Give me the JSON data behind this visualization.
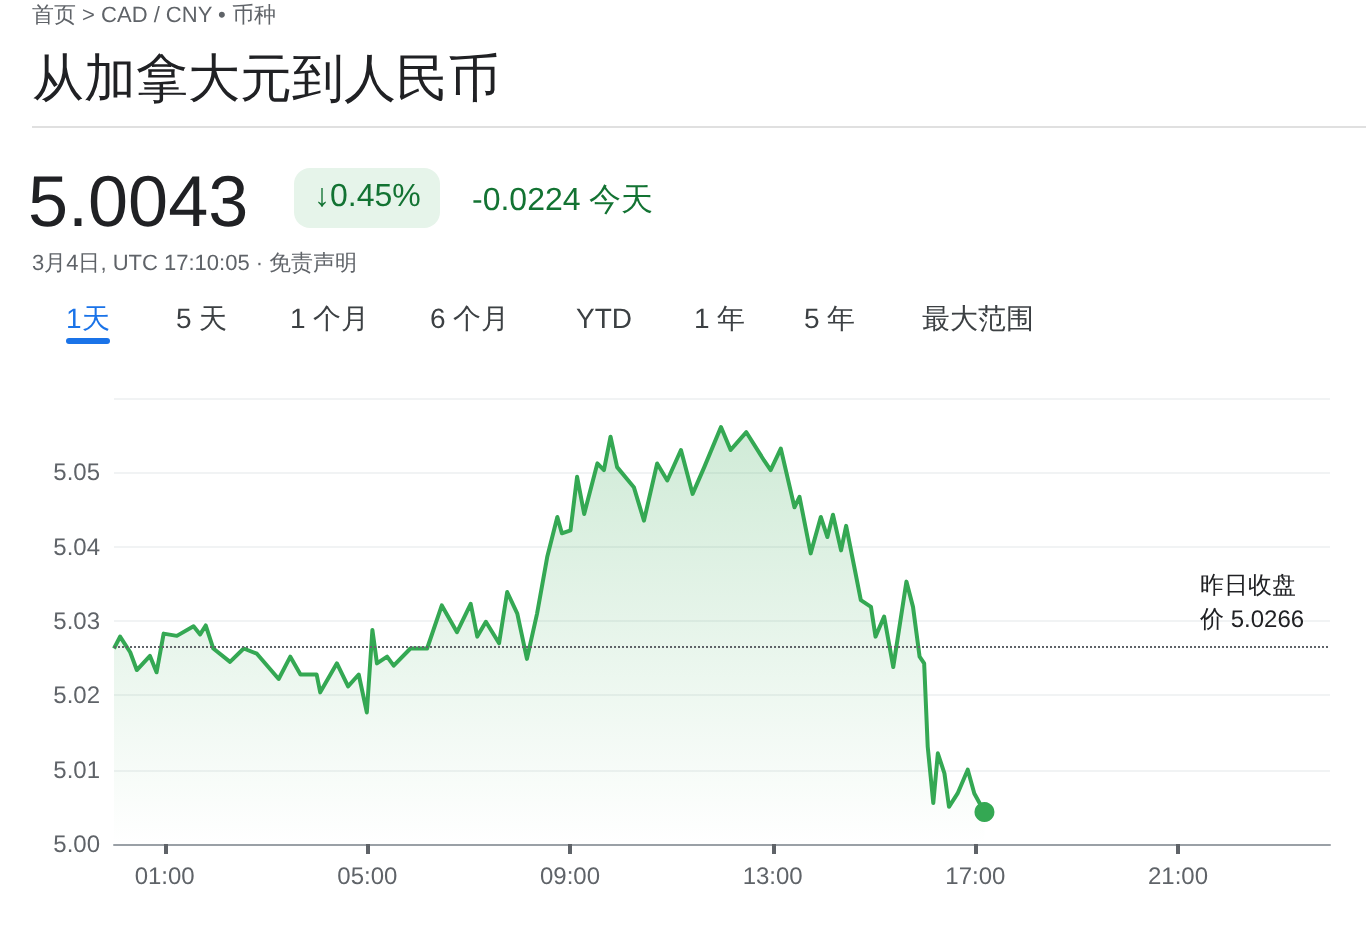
{
  "chart_data": {
    "type": "area",
    "title": "从加拿大元到人民币",
    "annotations": [
      "首页 > CAD / CNY • 币种",
      "5.0043",
      "↓0.45%",
      "-0.0224 今天",
      "3月4日, UTC 17:10:05 · 免责声明",
      "1天",
      "5 天",
      "1 个月",
      "6 个月",
      "YTD",
      "1 年",
      "5 年",
      "最大范围"
    ],
    "x": [
      0,
      0.12,
      0.32,
      0.45,
      0.71,
      0.84,
      0.98,
      1.24,
      1.57,
      1.7,
      1.81,
      1.96,
      2.29,
      2.56,
      2.82,
      3.25,
      3.48,
      3.68,
      4.0,
      4.07,
      4.4,
      4.62,
      4.83,
      4.99,
      5.1,
      5.19,
      5.39,
      5.52,
      5.85,
      6.18,
      6.47,
      6.77,
      7.04,
      7.17,
      7.34,
      7.6,
      7.76,
      7.96,
      8.15,
      8.35,
      8.55,
      8.75,
      8.84,
      9.01,
      9.14,
      9.28,
      9.54,
      9.67,
      9.8,
      9.93,
      10.26,
      10.46,
      10.72,
      10.92,
      11.19,
      11.42,
      11.65,
      11.98,
      12.17,
      12.48,
      12.83,
      12.96,
      13.16,
      13.43,
      13.53,
      13.75,
      13.95,
      14.08,
      14.19,
      14.35,
      14.45,
      14.61,
      14.74,
      14.94,
      15.03,
      15.2,
      15.38,
      15.64,
      15.77,
      15.9,
      15.99,
      16.06,
      16.17,
      16.26,
      16.39,
      16.48,
      16.65,
      16.85,
      16.98,
      17.18
    ],
    "series": [
      {
        "color": "#34a853",
        "values": [
          5.0263,
          5.0279,
          5.0258,
          5.0234,
          5.0253,
          5.0231,
          5.0283,
          5.028,
          5.0293,
          5.0282,
          5.0294,
          5.0263,
          5.0245,
          5.0263,
          5.0256,
          5.0222,
          5.0252,
          5.0228,
          5.0228,
          5.0204,
          5.0243,
          5.0212,
          5.0228,
          5.0177,
          5.0288,
          5.0243,
          5.0252,
          5.024,
          5.0263,
          5.0263,
          5.0321,
          5.0285,
          5.0323,
          5.0279,
          5.0299,
          5.027,
          5.0339,
          5.031,
          5.0249,
          5.031,
          5.0386,
          5.044,
          5.0418,
          5.0422,
          5.0494,
          5.0444,
          5.0512,
          5.0503,
          5.0548,
          5.0507,
          5.048,
          5.0435,
          5.0512,
          5.0489,
          5.053,
          5.0471,
          5.0507,
          5.0561,
          5.053,
          5.0554,
          5.0516,
          5.0503,
          5.0532,
          5.0453,
          5.0467,
          5.0391,
          5.044,
          5.0413,
          5.0443,
          5.0395,
          5.0428,
          5.0373,
          5.0328,
          5.0319,
          5.0279,
          5.0306,
          5.0238,
          5.0353,
          5.0319,
          5.0252,
          5.0243,
          5.0131,
          5.0055,
          5.0122,
          5.0095,
          5.005,
          5.0068,
          5.01,
          5.0068,
          5.0043
        ]
      }
    ],
    "xlim": [
      0,
      24
    ],
    "xticks": [
      {
        "value": 1,
        "label": "01:00"
      },
      {
        "value": 5,
        "label": "05:00"
      },
      {
        "value": 9,
        "label": "09:00"
      },
      {
        "value": 13,
        "label": "13:00"
      },
      {
        "value": 17,
        "label": "17:00"
      },
      {
        "value": 21,
        "label": "21:00"
      }
    ],
    "ylim": [
      5.0,
      5.06
    ],
    "yticks": [
      {
        "value": 5.0,
        "label": "5.00"
      },
      {
        "value": 5.01,
        "label": "5.01"
      },
      {
        "value": 5.02,
        "label": "5.02"
      },
      {
        "value": 5.03,
        "label": "5.03"
      },
      {
        "value": 5.04,
        "label": "5.04"
      },
      {
        "value": 5.05,
        "label": "5.05"
      }
    ],
    "ref_lines": [
      {
        "axis": "y",
        "value": 5.0266,
        "label": "昨日收盘价 5.0266",
        "color": "#5f6368",
        "line_style": "dotted"
      }
    ],
    "grid": "y"
  }
}
